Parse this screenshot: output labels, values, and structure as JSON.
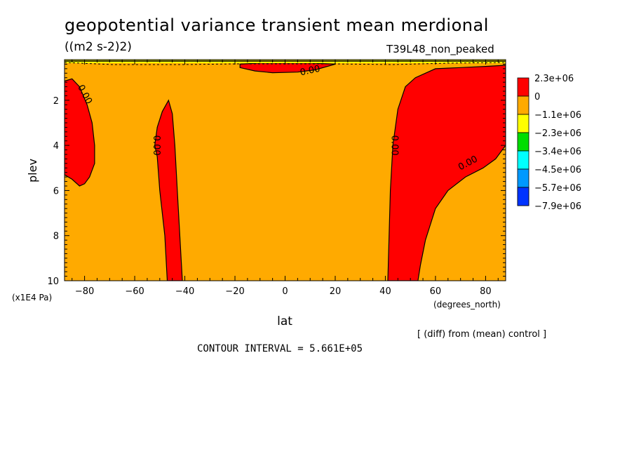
{
  "header": {
    "title": "geopotential variance transient mean merdional",
    "units": "((m2 s-2)2)",
    "run_name": "T39L48_non_peaked"
  },
  "footer": {
    "comparison_note": "[ (diff) from (mean) control ]",
    "contour_interval": "CONTOUR INTERVAL = 5.661E+05"
  },
  "chart_data": {
    "type": "contour",
    "xlabel": "lat",
    "ylabel": "plev",
    "x_units": "(degrees_north)",
    "y_units": "(x1E4 Pa)",
    "xlim": [
      -88,
      88
    ],
    "ylim": [
      0.2,
      10
    ],
    "y_inverted": true,
    "x_ticks": [
      -80,
      -60,
      -40,
      -20,
      0,
      20,
      40,
      60,
      80
    ],
    "y_ticks": [
      2,
      4,
      6,
      8,
      10
    ],
    "background_color": "#ffaa00",
    "contour_label": "0.00",
    "contour_interval": 566100,
    "legend": {
      "placement": "right",
      "entries": [
        {
          "label": "2.3e+06",
          "color": "#ff0000"
        },
        {
          "label": "0",
          "color": "#ffaa00"
        },
        {
          "label": "-1.1e+06",
          "color": "#ffff00"
        },
        {
          "label": "-2.3e+06",
          "color": "#00dd00"
        },
        {
          "label": "-3.4e+06",
          "color": "#00ffff"
        },
        {
          "label": "-4.5e+06",
          "color": "#0099ff"
        },
        {
          "label": "-5.7e+06",
          "color": "#0033ff"
        },
        {
          "label": "-7.9e+06",
          "color": "#0033ff"
        }
      ]
    },
    "regions": [
      {
        "name": "positive-region-far-south",
        "color": "#ff0000",
        "outline": [
          [
            -88,
            1.15
          ],
          [
            -85,
            1.05
          ],
          [
            -82,
            1.4
          ],
          [
            -79,
            2.2
          ],
          [
            -77,
            3.0
          ],
          [
            -76,
            4.0
          ],
          [
            -76,
            4.8
          ],
          [
            -78,
            5.4
          ],
          [
            -80,
            5.7
          ],
          [
            -82,
            5.8
          ],
          [
            -85,
            5.5
          ],
          [
            -88,
            5.3
          ]
        ]
      },
      {
        "name": "positive-region-southern-midlatitude",
        "color": "#ff0000",
        "outline": [
          [
            -47,
            10
          ],
          [
            -48,
            8
          ],
          [
            -50,
            6
          ],
          [
            -51,
            4.5
          ],
          [
            -52,
            4
          ],
          [
            -51,
            3.2
          ],
          [
            -49,
            2.5
          ],
          [
            -46.5,
            2.0
          ],
          [
            -45,
            2.6
          ],
          [
            -44,
            4
          ],
          [
            -43,
            6
          ],
          [
            -42,
            8
          ],
          [
            -41,
            10
          ]
        ]
      },
      {
        "name": "positive-region-upper-center",
        "color": "#ff0000",
        "outline": [
          [
            -18,
            0.4
          ],
          [
            -10,
            0.35
          ],
          [
            0,
            0.35
          ],
          [
            10,
            0.35
          ],
          [
            20,
            0.4
          ],
          [
            12,
            0.65
          ],
          [
            5,
            0.75
          ],
          [
            -5,
            0.78
          ],
          [
            -12,
            0.7
          ],
          [
            -18,
            0.55
          ]
        ]
      },
      {
        "name": "positive-region-northern",
        "color": "#ff0000",
        "outline": [
          [
            41,
            10
          ],
          [
            42,
            6
          ],
          [
            43,
            4
          ],
          [
            45,
            2.4
          ],
          [
            48,
            1.4
          ],
          [
            52,
            1.0
          ],
          [
            60,
            0.6
          ],
          [
            70,
            0.55
          ],
          [
            80,
            0.5
          ],
          [
            88,
            0.45
          ],
          [
            88,
            4.0
          ],
          [
            84,
            4.6
          ],
          [
            79,
            5.0
          ],
          [
            72,
            5.4
          ],
          [
            65,
            6.0
          ],
          [
            60,
            6.8
          ],
          [
            56,
            8.2
          ],
          [
            54,
            9.3
          ],
          [
            53,
            10
          ]
        ]
      }
    ],
    "contour_labels": [
      {
        "x": -80,
        "y": 1.75,
        "text": "0.00",
        "angle": 62
      },
      {
        "x": -51.5,
        "y": 4.0,
        "text": "0.00",
        "angle": 90
      },
      {
        "x": 10,
        "y": 0.7,
        "text": "0.00",
        "angle": -12
      },
      {
        "x": 43.5,
        "y": 4.0,
        "text": "0.00",
        "angle": 90
      },
      {
        "x": 73,
        "y": 4.8,
        "text": "0.00",
        "angle": -28
      }
    ]
  }
}
